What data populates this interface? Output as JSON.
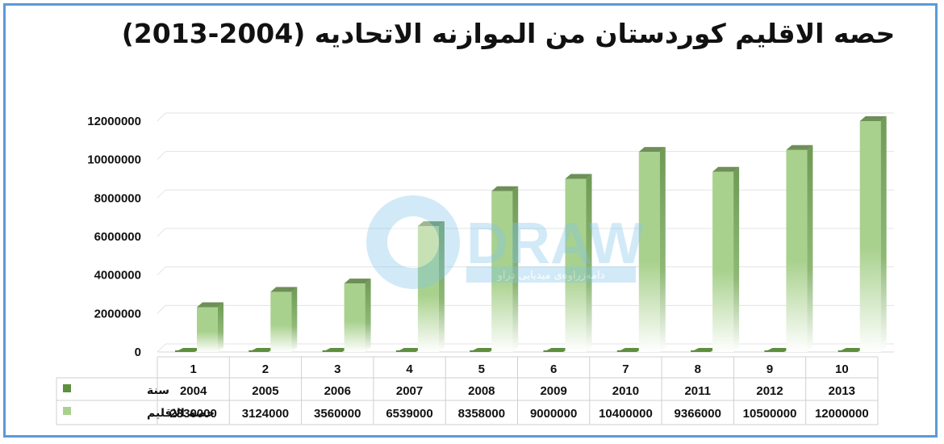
{
  "chart_data": {
    "type": "bar",
    "title": "حصه الاقليم كوردستان من الموازنه الاتحاديه (2004-2013)",
    "categories": [
      "1",
      "2",
      "3",
      "4",
      "5",
      "6",
      "7",
      "8",
      "9",
      "10"
    ],
    "series": [
      {
        "name": "سنة",
        "values": [
          2004,
          2005,
          2006,
          2007,
          2008,
          2009,
          2010,
          2011,
          2012,
          2013
        ],
        "color": "#5e8f3f"
      },
      {
        "name": "حصة الاقليم",
        "values": [
          2330000,
          3124000,
          3560000,
          6539000,
          8358000,
          9000000,
          10400000,
          9366000,
          10500000,
          12000000
        ],
        "color": "#a9d18e"
      }
    ],
    "yticks": [
      "0",
      "2000000",
      "4000000",
      "6000000",
      "8000000",
      "10000000",
      "12000000"
    ],
    "ylim": [
      0,
      12000000
    ],
    "grid": true,
    "legend": "data-table"
  },
  "watermark": {
    "brand": "DRAW",
    "tagline": "دامەزراوەی میدیایی دراو"
  }
}
